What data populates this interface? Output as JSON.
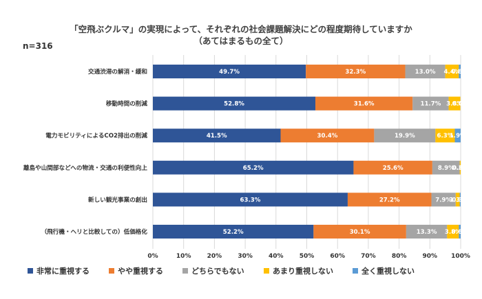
{
  "chart_data": {
    "type": "bar",
    "orientation": "horizontal",
    "stacked": true,
    "title": "「空飛ぶクルマ」の実現によって、それぞれの社会課題解決にどの程度期待していますか",
    "subtitle": "（あてはまるもの全て）",
    "note": "n=316",
    "categories": [
      "交通渋滞の解消・緩和",
      "移動時間の削減",
      "電力モビリティによるCO2排出の削減",
      "離島や山間部などへの物流・交通の利便性向上",
      "新しい観光事業の創出",
      "（飛行機・ヘリと比較しての）低価格化"
    ],
    "series": [
      {
        "name": "非常に重視する",
        "color": "#2f5597",
        "values": [
          49.7,
          52.8,
          41.5,
          65.2,
          63.3,
          52.2
        ],
        "labels": [
          "49.7%",
          "52.8%",
          "41.5%",
          "65.2%",
          "63.3%",
          "52.2%"
        ]
      },
      {
        "name": "やや重視する",
        "color": "#ed7d31",
        "values": [
          32.3,
          31.6,
          30.4,
          25.6,
          27.2,
          30.1
        ],
        "labels": [
          "32.3%",
          "31.6%",
          "30.4%",
          "25.6%",
          "27.2%",
          "30.1%"
        ]
      },
      {
        "name": "どちらでもない",
        "color": "#a5a5a5",
        "values": [
          13.0,
          11.7,
          19.9,
          8.9,
          7.9,
          13.3
        ],
        "labels": [
          "13.0%",
          "11.7%",
          "19.9%",
          "8.9%",
          "7.9%",
          "13.3%"
        ]
      },
      {
        "name": "あまり重視しない",
        "color": "#ffc000",
        "values": [
          4.4,
          3.8,
          6.3,
          0.3,
          1.3,
          3.8
        ],
        "labels": [
          "4.4%",
          "3.8%",
          "6.3%",
          "0.3%",
          "1.3%",
          "3.8%"
        ]
      },
      {
        "name": "全く重視しない",
        "color": "#5b9bd5",
        "values": [
          0.6,
          0.0,
          1.9,
          0.0,
          0.3,
          0.6
        ],
        "labels": [
          "0.6%",
          "0.0%",
          "1.9%",
          "0.0%",
          "0.3%",
          "0.6%"
        ]
      }
    ],
    "xlim": [
      0,
      100
    ],
    "xticks": [
      "0%",
      "10%",
      "20%",
      "30%",
      "40%",
      "50%",
      "60%",
      "70%",
      "80%",
      "90%",
      "100%"
    ],
    "grid": true,
    "legend_position": "bottom"
  }
}
